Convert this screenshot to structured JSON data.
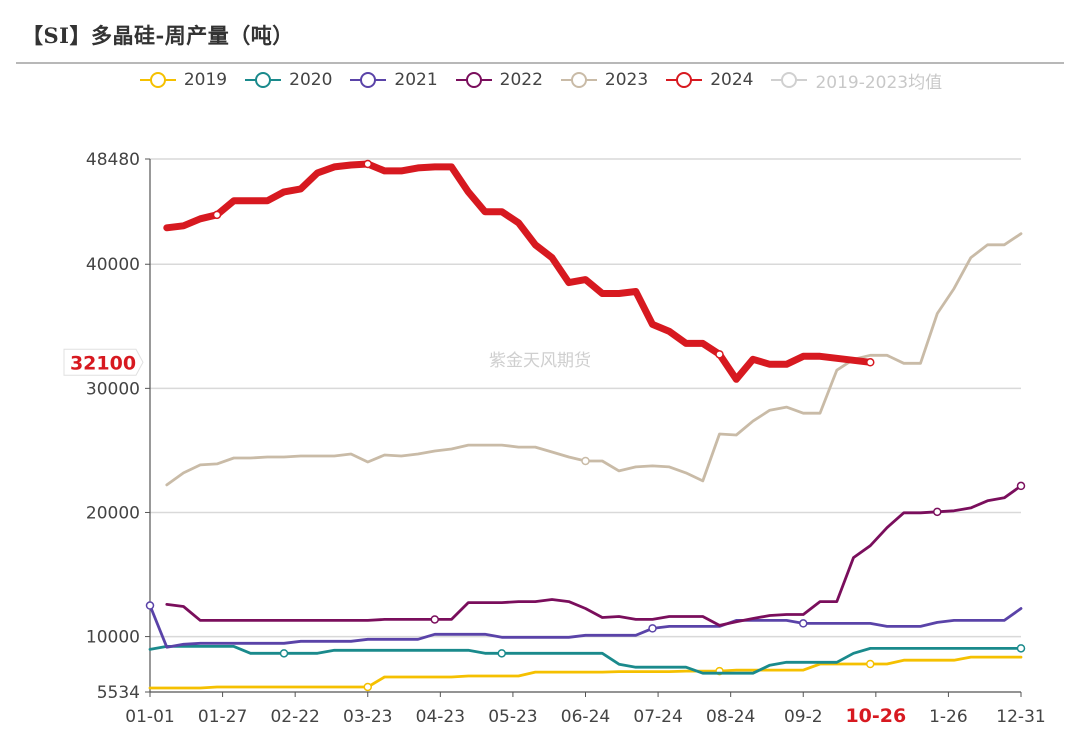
{
  "title": "【SI】多晶硅-周产量（吨）",
  "watermark": "紫金天风期货",
  "chart_data": {
    "type": "line",
    "title": "【SI】多晶硅-周产量（吨）",
    "xlabel": "",
    "ylabel": "",
    "ylim": [
      5534,
      48480
    ],
    "y_ticks": [
      "48480",
      "40000",
      "30000",
      "20000",
      "10000",
      "5534"
    ],
    "y_tick_values": [
      48480,
      40000,
      30000,
      20000,
      10000,
      5534
    ],
    "x_tick_labels": [
      "01-01",
      "01-27",
      "02-22",
      "03-23",
      "04-23",
      "05-23",
      "06-24",
      "07-24",
      "08-24",
      "09-2",
      "10-26",
      "1-26",
      "12-31"
    ],
    "highlight_x_label": "10-26",
    "pointer_value": "32100",
    "grid": true,
    "legend_position": "top",
    "weeks": 53,
    "series": [
      {
        "name": "2019",
        "color": "#f5c000",
        "markers": [
          13,
          34,
          43
        ],
        "values": [
          5860,
          5860,
          5860,
          5860,
          5940,
          5940,
          5940,
          5940,
          5940,
          5940,
          5940,
          5940,
          5940,
          5940,
          6740,
          6740,
          6740,
          6740,
          6740,
          6820,
          6820,
          6820,
          6820,
          7140,
          7140,
          7140,
          7140,
          7140,
          7180,
          7180,
          7180,
          7180,
          7220,
          7220,
          7220,
          7300,
          7300,
          7300,
          7300,
          7300,
          7790,
          7790,
          7790,
          7790,
          7790,
          8100,
          8100,
          8100,
          8100,
          8350,
          8350,
          8350,
          8350
        ]
      },
      {
        "name": "2020",
        "color": "#1a8a8c",
        "markers": [
          8,
          21,
          52
        ],
        "values": [
          8970,
          9210,
          9210,
          9210,
          9210,
          9210,
          8650,
          8650,
          8650,
          8650,
          8650,
          8890,
          8890,
          8890,
          8890,
          8890,
          8890,
          8890,
          8890,
          8890,
          8650,
          8650,
          8650,
          8650,
          8650,
          8650,
          8650,
          8650,
          7770,
          7530,
          7530,
          7530,
          7530,
          7050,
          7050,
          7050,
          7050,
          7690,
          7930,
          7930,
          7930,
          7930,
          8650,
          9050,
          9050,
          9050,
          9050,
          9050,
          9050,
          9050,
          9050,
          9050,
          9050
        ]
      },
      {
        "name": "2021",
        "color": "#5a43a8",
        "markers": [
          0,
          30,
          39
        ],
        "values": [
          12500,
          9140,
          9380,
          9460,
          9460,
          9460,
          9460,
          9460,
          9460,
          9620,
          9620,
          9620,
          9620,
          9780,
          9780,
          9780,
          9780,
          10180,
          10180,
          10180,
          10180,
          9940,
          9940,
          9940,
          9940,
          9940,
          10100,
          10100,
          10100,
          10100,
          10660,
          10820,
          10820,
          10820,
          10820,
          11300,
          11300,
          11300,
          11300,
          11060,
          11060,
          11060,
          11060,
          11060,
          10820,
          10820,
          10820,
          11140,
          11300,
          11300,
          11300,
          11300,
          12260
        ]
      },
      {
        "name": "2022",
        "color": "#7a0e5c",
        "markers": [
          17,
          47,
          52
        ],
        "values": [
          null,
          12590,
          12420,
          11300,
          11300,
          11300,
          11300,
          11300,
          11300,
          11300,
          11300,
          11300,
          11300,
          11300,
          11380,
          11380,
          11380,
          11380,
          11380,
          12740,
          12740,
          12740,
          12820,
          12820,
          12990,
          12820,
          12260,
          11540,
          11620,
          11380,
          11380,
          11620,
          11620,
          11620,
          10900,
          11200,
          11460,
          11700,
          11780,
          11780,
          12820,
          12820,
          16360,
          17320,
          18770,
          19970,
          19970,
          20050,
          20130,
          20370,
          20940,
          21180,
          22140
        ]
      },
      {
        "name": "2023",
        "color": "#c9bba7",
        "markers": [
          26
        ],
        "values": [
          null,
          22220,
          23190,
          23830,
          23910,
          24390,
          24390,
          24470,
          24470,
          24550,
          24550,
          24550,
          24710,
          24070,
          24630,
          24550,
          24710,
          24950,
          25110,
          25430,
          25430,
          25430,
          25270,
          25270,
          24870,
          24470,
          24150,
          24150,
          23350,
          23670,
          23750,
          23670,
          23190,
          22540,
          26320,
          26240,
          27360,
          28240,
          28490,
          28000,
          28000,
          31460,
          32340,
          32660,
          32660,
          32020,
          32020,
          36030,
          38040,
          40530,
          41570,
          41570,
          42460
        ]
      },
      {
        "name": "2024",
        "color": "#d71920",
        "markers": [
          4,
          13,
          34,
          43
        ],
        "bold": true,
        "values": [
          null,
          42940,
          43100,
          43660,
          43980,
          45110,
          45110,
          45110,
          45830,
          46070,
          47360,
          47840,
          48000,
          48080,
          47520,
          47520,
          47760,
          47840,
          47840,
          45830,
          44230,
          44230,
          43340,
          41570,
          40530,
          38520,
          38760,
          37640,
          37640,
          37800,
          35150,
          34590,
          33620,
          33620,
          32740,
          30730,
          32340,
          31940,
          31940,
          32580,
          32580,
          32420,
          32260,
          32100,
          null,
          null,
          null,
          null,
          null,
          null,
          null,
          null,
          null
        ]
      },
      {
        "name": "2019-2023均值",
        "color": "#d9d9d9",
        "disabled": true,
        "values": []
      }
    ]
  }
}
